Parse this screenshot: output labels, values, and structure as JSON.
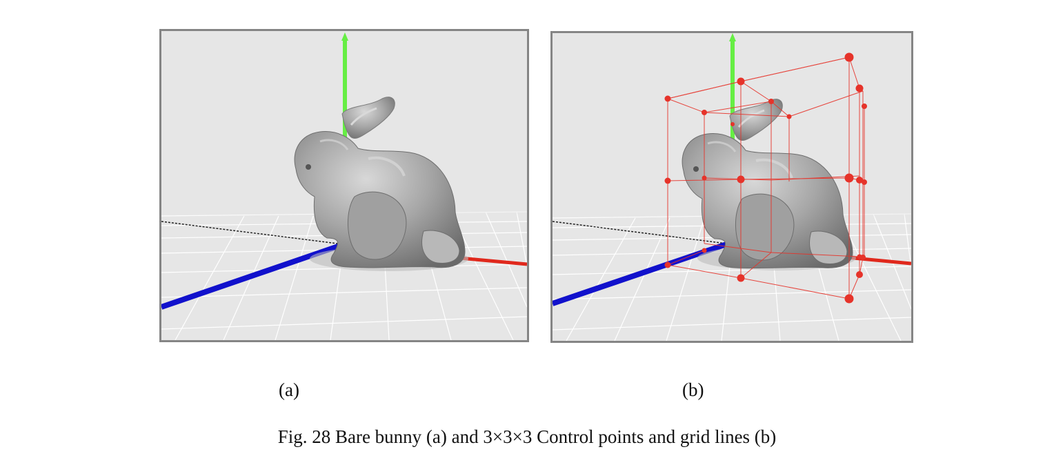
{
  "figure": {
    "panels": [
      {
        "id": "a",
        "label": "(a)",
        "shows": "bare-bunny"
      },
      {
        "id": "b",
        "label": "(b)",
        "shows": "bunny-with-control-lattice",
        "lattice": "3×3×3"
      }
    ],
    "caption": "Fig. 28 Bare bunny (a) and 3×3×3 Control points and grid lines (b)"
  },
  "colors": {
    "background": "#e6e6e6",
    "frame": "#858585",
    "grid": "#ffffff",
    "axis_x": "#e0281c",
    "axis_y": "#66ee44",
    "axis_z": "#1111cc",
    "control_point": "#e6332a",
    "bunny": "#9a9a9a"
  }
}
